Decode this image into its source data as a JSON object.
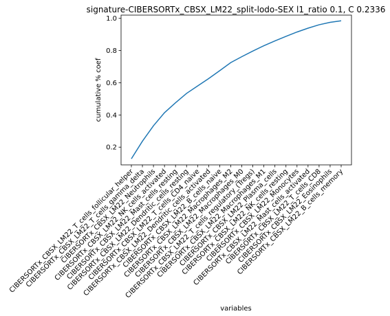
{
  "chart_data": {
    "type": "line",
    "title": "signature-CIBERSORTx_CBSX_LM22_split-lodo-SEX l1_ratio 0.1, C 0.2336",
    "xlabel": "variables",
    "ylabel": "cumulative % coef",
    "ylim": [
      0.09,
      1.02
    ],
    "yticks": [
      0.2,
      0.4,
      0.6,
      0.8,
      1.0
    ],
    "ytick_labels": [
      "0.2",
      "0.4",
      "0.6",
      "0.8",
      "1.0"
    ],
    "grid": false,
    "line_color": "#1f77b4",
    "categories": [
      "CIBERSORTx_CBSX_LM22_T_cells_follicular_helper",
      "CIBERSORTx_CBSX_LM22_T_cells_gamma_delta",
      "CIBERSORTx_CBSX_LM22_Neutrophils",
      "CIBERSORTx_CBSX_LM22_NK_cells_activated",
      "CIBERSORTx_CBSX_LM22_Mast_cells_resting",
      "CIBERSORTx_CBSX_LM22_Dendritic_cells_resting",
      "CIBERSORTx_CBSX_LM22_T_cells_CD4_naive",
      "CIBERSORTx_CBSX_LM22_Dendritic_cells_activated",
      "CIBERSORTx_CBSX_LM22_B_cells_naive",
      "CIBERSORTx_CBSX_LM22_Macrophages_M2",
      "CIBERSORTx_CBSX_LM22_Macrophages_M0",
      "CIBERSORTx_CBSX_LM22_T_cells_regulatory_(Tregs)",
      "CIBERSORTx_CBSX_LM22_Macrophages_M1",
      "CIBERSORTx_CBSX_LM22_Plasma_cells",
      "CIBERSORTx_CBSX_LM22_NK_cells_resting",
      "CIBERSORTx_CBSX_LM22_Monocytes",
      "CIBERSORTx_CBSX_LM22_Mast_cells_activated",
      "CIBERSORTx_CBSX_LM22_T_cells_CD8",
      "CIBERSORTx_CBSX_LM22_Eosinophils",
      "CIBERSORTx_CBSX_LM22_B_cells_memory"
    ],
    "values": [
      0.128,
      0.237,
      0.333,
      0.414,
      0.476,
      0.534,
      0.58,
      0.626,
      0.675,
      0.725,
      0.762,
      0.797,
      0.83,
      0.86,
      0.888,
      0.915,
      0.939,
      0.96,
      0.975,
      0.985
    ]
  }
}
